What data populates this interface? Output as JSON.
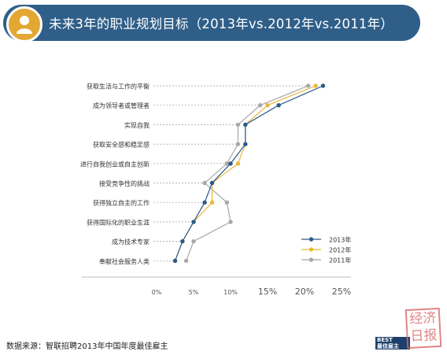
{
  "header": {
    "title": "未来3年的职业规划目标（2013年vs.2012年vs.2011年）",
    "icon": "user-icon"
  },
  "footer": {
    "source": "数据来源：智联招聘2013年中国年度最佳雇主",
    "logo_line1": "BEST",
    "logo_line2": "最佳雇主"
  },
  "seal": {
    "text": "经济日报"
  },
  "colors": {
    "header_bg": "#2f5f89",
    "badge": "#e3a733",
    "s2013": "#2b5a8a",
    "s2012": "#e8b83a",
    "s2011": "#a8a8a8"
  },
  "chart_data": {
    "type": "line",
    "categories": [
      "获取生活与工作的平衡",
      "成为领导者或管理者",
      "实现自我",
      "获取安全感和稳定感",
      "进行自我创业或自主创新",
      "接受竞争性的挑战",
      "获得独立自主的工作",
      "获得国际化的职业生涯",
      "成为技术专家",
      "奉献社会服务人类"
    ],
    "series": [
      {
        "name": "2013年",
        "values": [
          22.5,
          16.5,
          12.0,
          12.0,
          10.0,
          7.5,
          6.5,
          5.0,
          3.5,
          2.5
        ]
      },
      {
        "name": "2012年",
        "values": [
          21.5,
          15.0,
          12.0,
          12.0,
          11.0,
          7.5,
          7.5,
          5.0,
          3.5,
          2.5
        ]
      },
      {
        "name": "2011年",
        "values": [
          20.5,
          14.0,
          11.0,
          11.0,
          9.5,
          6.5,
          9.5,
          10.0,
          5.0,
          4.0
        ]
      }
    ],
    "x_ticks": [
      "0%",
      "5%",
      "10%",
      "15%",
      "20%",
      "25%"
    ],
    "xlim": [
      0,
      25
    ],
    "grid": "horizontal dashed guide lines",
    "legend": "bottom-right",
    "orientation": "horizontal"
  }
}
